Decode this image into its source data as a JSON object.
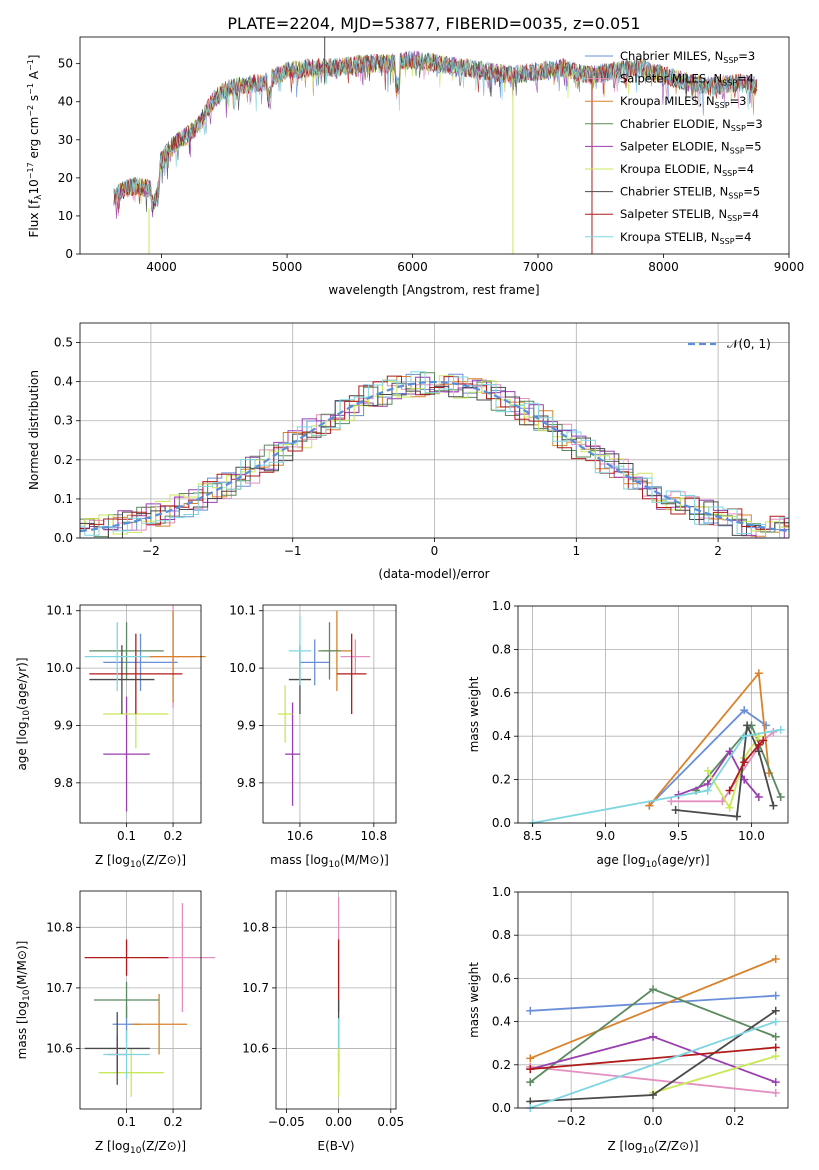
{
  "figure_title": "PLATE=2204, MJD=53877, FIBERID=0035, z=0.051",
  "colors": {
    "chabrier_miles": "#6a8fd8",
    "salpeter_miles": "#e38fc0",
    "kroupa_miles": "#d9822b",
    "chabrier_elodie": "#5b8a5e",
    "salpeter_elodie": "#9a3fb0",
    "kroupa_elodie": "#c8e85a",
    "chabrier_stelib": "#4a4a4a",
    "salpeter_stelib": "#b01c1c",
    "kroupa_stelib": "#7fd6e0",
    "gaussian": "#5b8ed8",
    "grid": "#b0b0b0"
  },
  "chart_data": [
    {
      "id": "spectrum",
      "type": "line",
      "xlabel": "wavelength [Angstrom, rest frame]",
      "ylabel_main": "Flux [f",
      "ylabel_sub": "λ",
      "ylabel_rest": "10",
      "ylabel_exp": "−17",
      "ylabel_units": "erg cm",
      "ylabel_units_exp": "−2",
      "ylabel_units2": "s",
      "ylabel_units2_exp": "−1",
      "ylabel_units3": "A",
      "ylabel_units3_exp": "−1",
      "ylabel_close": "]",
      "xlim": [
        3350,
        9000
      ],
      "ylim": [
        0,
        57
      ],
      "xticks": [
        "4000",
        "5000",
        "6000",
        "7000",
        "8000",
        "9000"
      ],
      "yticks": [
        "0",
        "10",
        "20",
        "30",
        "40",
        "50"
      ],
      "grid": false,
      "legend_position": "top-right",
      "legend": [
        {
          "label": "Chabrier MILES, N",
          "sub": "SSP",
          "value": "=3"
        },
        {
          "label": "Salpeter MILES, N",
          "sub": "SSP",
          "value": "=4"
        },
        {
          "label": "Kroupa MILES, N",
          "sub": "SSP",
          "value": "=3"
        },
        {
          "label": "Chabrier ELODIE, N",
          "sub": "SSP",
          "value": "=3"
        },
        {
          "label": "Salpeter ELODIE, N",
          "sub": "SSP",
          "value": "=5"
        },
        {
          "label": "Kroupa ELODIE, N",
          "sub": "SSP",
          "value": "=4"
        },
        {
          "label": "Chabrier STELIB, N",
          "sub": "SSP",
          "value": "=5"
        },
        {
          "label": "Salpeter STELIB, N",
          "sub": "SSP",
          "value": "=4"
        },
        {
          "label": "Kroupa STELIB, N",
          "sub": "SSP",
          "value": "=4"
        }
      ],
      "spectrum_envelope": {
        "x": [
          3620,
          3700,
          3800,
          3900,
          3950,
          4000,
          4100,
          4200,
          4300,
          4400,
          4500,
          4600,
          4800,
          5000,
          5200,
          5400,
          5600,
          5800,
          6000,
          6200,
          6400,
          6600,
          6800,
          7000,
          7200,
          7400,
          7600,
          7800,
          8000,
          8200,
          8400,
          8600,
          8750
        ],
        "y": [
          15,
          17,
          18,
          17,
          19,
          25,
          29,
          31,
          34,
          40,
          43,
          44,
          45,
          48,
          49,
          49,
          50,
          50,
          51,
          50,
          49,
          48,
          47,
          48,
          49,
          47,
          48,
          49,
          47,
          45,
          44,
          45,
          44
        ]
      },
      "spikes": [
        {
          "x": 5300,
          "y_top": 57,
          "y_bottom": 45
        },
        {
          "x": 6800,
          "y_top": 46,
          "y_bottom": 0
        },
        {
          "x": 7430,
          "y_top": 46,
          "y_bottom": 0
        },
        {
          "x": 3900,
          "y_top": 12,
          "y_bottom": 0
        }
      ]
    },
    {
      "id": "residuals",
      "type": "histogram",
      "xlabel": "(data-model)/error",
      "ylabel": "Normed distribution",
      "xlim": [
        -2.5,
        2.5
      ],
      "ylim": [
        0,
        0.55
      ],
      "xticks": [
        "−2",
        "−1",
        "0",
        "1",
        "2"
      ],
      "yticks": [
        "0.0",
        "0.1",
        "0.2",
        "0.3",
        "0.4",
        "0.5"
      ],
      "grid": true,
      "legend_position": "top-right",
      "legend_label": "𝒩(0, 1)",
      "gaussian": {
        "mean": 0,
        "sigma": 1
      }
    },
    {
      "id": "age_vs_Z",
      "type": "errorbar",
      "xlabel": "Z [log10(Z/Z⊙)]",
      "ylabel": "age  [log10(age/yr)]",
      "xlim": [
        0.0,
        0.26
      ],
      "ylim": [
        9.73,
        10.11
      ],
      "xticks": [
        "0.1",
        "0.2"
      ],
      "yticks": [
        "9.8",
        "9.9",
        "10.0",
        "10.1"
      ],
      "grid": true,
      "points": [
        {
          "series": "chabrier_miles",
          "x": 0.13,
          "xerr": 0.08,
          "y": 10.01,
          "yerr": 0.05
        },
        {
          "series": "salpeter_miles",
          "x": 0.2,
          "xerr": 0.05,
          "y": 10.02,
          "yerr": 0.09
        },
        {
          "series": "kroupa_miles",
          "x": 0.2,
          "xerr": 0.07,
          "y": 10.02,
          "yerr": 0.08
        },
        {
          "series": "chabrier_elodie",
          "x": 0.1,
          "xerr": 0.08,
          "y": 10.03,
          "yerr": 0.05
        },
        {
          "series": "salpeter_elodie",
          "x": 0.1,
          "xerr": 0.05,
          "y": 9.85,
          "yerr": 0.1
        },
        {
          "series": "kroupa_elodie",
          "x": 0.12,
          "xerr": 0.07,
          "y": 9.92,
          "yerr": 0.06
        },
        {
          "series": "chabrier_stelib",
          "x": 0.09,
          "xerr": 0.07,
          "y": 9.98,
          "yerr": 0.06
        },
        {
          "series": "salpeter_stelib",
          "x": 0.12,
          "xerr": 0.1,
          "y": 9.99,
          "yerr": 0.07
        },
        {
          "series": "kroupa_stelib",
          "x": 0.08,
          "xerr": 0.07,
          "y": 10.02,
          "yerr": 0.06
        }
      ]
    },
    {
      "id": "age_vs_mass",
      "type": "errorbar",
      "xlabel": "mass [log10(M/M⊙)]",
      "xlim": [
        10.5,
        10.86
      ],
      "ylim": [
        9.73,
        10.11
      ],
      "xticks": [
        "10.6",
        "10.8"
      ],
      "yticks": [
        "9.8",
        "9.9",
        "10.0",
        "10.1"
      ],
      "grid": true,
      "points": [
        {
          "series": "chabrier_miles",
          "x": 10.64,
          "xerr": 0.04,
          "y": 10.01,
          "yerr": 0.04
        },
        {
          "series": "salpeter_miles",
          "x": 10.75,
          "xerr": 0.04,
          "y": 10.02,
          "yerr": 0.03
        },
        {
          "series": "kroupa_miles",
          "x": 10.7,
          "xerr": 0.04,
          "y": 10.03,
          "yerr": 0.07
        },
        {
          "series": "chabrier_elodie",
          "x": 10.68,
          "xerr": 0.03,
          "y": 10.03,
          "yerr": 0.05
        },
        {
          "series": "salpeter_elodie",
          "x": 10.58,
          "xerr": 0.02,
          "y": 9.85,
          "yerr": 0.09
        },
        {
          "series": "kroupa_elodie",
          "x": 10.56,
          "xerr": 0.02,
          "y": 9.92,
          "yerr": 0.05
        },
        {
          "series": "chabrier_stelib",
          "x": 10.6,
          "xerr": 0.03,
          "y": 9.98,
          "yerr": 0.06
        },
        {
          "series": "salpeter_stelib",
          "x": 10.74,
          "xerr": 0.04,
          "y": 9.99,
          "yerr": 0.07
        },
        {
          "series": "kroupa_stelib",
          "x": 10.6,
          "xerr": 0.03,
          "y": 10.03,
          "yerr": 0.06
        }
      ]
    },
    {
      "id": "mass_weight_vs_age",
      "type": "line",
      "xlabel": "age  [log10(age/yr)]",
      "ylabel": "mass weight",
      "xlim": [
        8.4,
        10.25
      ],
      "ylim": [
        0,
        1.0
      ],
      "xticks": [
        "8.5",
        "9.0",
        "9.5",
        "10.0"
      ],
      "yticks": [
        "0.0",
        "0.2",
        "0.4",
        "0.6",
        "0.8",
        "1.0"
      ],
      "grid": true,
      "series": [
        {
          "name": "chabrier_miles",
          "x": [
            9.3,
            9.95,
            10.1
          ],
          "y": [
            0.08,
            0.52,
            0.45
          ]
        },
        {
          "name": "salpeter_miles",
          "x": [
            9.45,
            9.8,
            10.08,
            10.15
          ],
          "y": [
            0.1,
            0.1,
            0.38,
            0.42
          ]
        },
        {
          "name": "kroupa_miles",
          "x": [
            9.3,
            10.05,
            10.12
          ],
          "y": [
            0.08,
            0.69,
            0.23
          ]
        },
        {
          "name": "chabrier_elodie",
          "x": [
            9.62,
            10.0,
            10.2
          ],
          "y": [
            0.15,
            0.45,
            0.12
          ]
        },
        {
          "name": "salpeter_elodie",
          "x": [
            9.5,
            9.7,
            9.85,
            9.95,
            10.05
          ],
          "y": [
            0.13,
            0.18,
            0.33,
            0.2,
            0.12
          ]
        },
        {
          "name": "kroupa_elodie",
          "x": [
            9.7,
            9.85,
            9.95,
            10.05
          ],
          "y": [
            0.24,
            0.07,
            0.3,
            0.4
          ]
        },
        {
          "name": "chabrier_stelib",
          "x": [
            9.48,
            9.9,
            9.97,
            10.05,
            10.15
          ],
          "y": [
            0.06,
            0.03,
            0.45,
            0.33,
            0.08
          ]
        },
        {
          "name": "salpeter_stelib",
          "x": [
            9.85,
            9.95,
            10.05,
            10.08
          ],
          "y": [
            0.15,
            0.28,
            0.36,
            0.38
          ]
        },
        {
          "name": "kroupa_stelib",
          "x": [
            8.5,
            9.7,
            9.95,
            10.2
          ],
          "y": [
            0.0,
            0.15,
            0.4,
            0.43
          ]
        }
      ]
    },
    {
      "id": "mass_vs_Z",
      "type": "errorbar",
      "xlabel": "Z [log10(Z/Z⊙)]",
      "ylabel": "mass [log10(M/M⊙)]",
      "xlim": [
        0.0,
        0.26
      ],
      "ylim": [
        10.5,
        10.86
      ],
      "xticks": [
        "0.1",
        "0.2"
      ],
      "yticks": [
        "10.6",
        "10.7",
        "10.8"
      ],
      "grid": true,
      "points": [
        {
          "series": "chabrier_miles",
          "x": 0.1,
          "xerr": 0.03,
          "y": 10.64,
          "yerr": 0.03
        },
        {
          "series": "salpeter_miles",
          "x": 0.22,
          "xerr": 0.07,
          "y": 10.75,
          "yerr": 0.09
        },
        {
          "series": "kroupa_miles",
          "x": 0.17,
          "xerr": 0.06,
          "y": 10.64,
          "yerr": 0.05
        },
        {
          "series": "chabrier_elodie",
          "x": 0.1,
          "xerr": 0.07,
          "y": 10.68,
          "yerr": 0.03
        },
        {
          "series": "salpeter_elodie",
          "x": 0.08,
          "xerr": 0.02,
          "y": 10.59,
          "yerr": 0.03
        },
        {
          "series": "kroupa_elodie",
          "x": 0.11,
          "xerr": 0.07,
          "y": 10.56,
          "yerr": 0.04
        },
        {
          "series": "chabrier_stelib",
          "x": 0.08,
          "xerr": 0.07,
          "y": 10.6,
          "yerr": 0.06
        },
        {
          "series": "salpeter_stelib",
          "x": 0.1,
          "xerr": 0.09,
          "y": 10.75,
          "yerr": 0.03
        },
        {
          "series": "kroupa_stelib",
          "x": 0.1,
          "xerr": 0.05,
          "y": 10.59,
          "yerr": 0.04
        }
      ]
    },
    {
      "id": "mass_vs_ebv",
      "type": "errorbar",
      "xlabel": "E(B-V)",
      "xlim": [
        -0.06,
        0.055
      ],
      "ylim": [
        10.5,
        10.86
      ],
      "xticks": [
        "−0.05",
        "0.00",
        "0.05"
      ],
      "yticks": [
        "10.6",
        "10.7",
        "10.8"
      ],
      "grid": true,
      "points": [
        {
          "series": "salpeter_miles",
          "x": 0.0,
          "xerr": 0.0,
          "y": 10.77,
          "yerr": 0.08
        },
        {
          "series": "salpeter_stelib",
          "x": 0.0,
          "xerr": 0.0,
          "y": 10.72,
          "yerr": 0.06
        },
        {
          "series": "chabrier_stelib",
          "x": 0.0,
          "xerr": 0.0,
          "y": 10.62,
          "yerr": 0.06
        },
        {
          "series": "kroupa_stelib",
          "x": 0.0,
          "xerr": 0.0,
          "y": 10.6,
          "yerr": 0.05
        },
        {
          "series": "kroupa_elodie",
          "x": 0.0,
          "xerr": 0.0,
          "y": 10.56,
          "yerr": 0.04
        }
      ]
    },
    {
      "id": "mass_weight_vs_Z",
      "type": "line",
      "xlabel": "Z [log10(Z/Z⊙)]",
      "ylabel": "mass weight",
      "xlim": [
        -0.33,
        0.33
      ],
      "ylim": [
        0,
        1.0
      ],
      "xticks": [
        "−0.2",
        "0.0",
        "0.2"
      ],
      "yticks": [
        "0.0",
        "0.2",
        "0.4",
        "0.6",
        "0.8",
        "1.0"
      ],
      "grid": true,
      "series": [
        {
          "name": "chabrier_miles",
          "x": [
            -0.3,
            0.3
          ],
          "y": [
            0.45,
            0.52
          ]
        },
        {
          "name": "salpeter_miles",
          "x": [
            -0.3,
            0.3
          ],
          "y": [
            0.19,
            0.07
          ]
        },
        {
          "name": "kroupa_miles",
          "x": [
            -0.3,
            0.3
          ],
          "y": [
            0.23,
            0.69
          ]
        },
        {
          "name": "chabrier_elodie",
          "x": [
            -0.3,
            0.0,
            0.3
          ],
          "y": [
            0.12,
            0.55,
            0.33
          ]
        },
        {
          "name": "salpeter_elodie",
          "x": [
            -0.3,
            0.0,
            0.3
          ],
          "y": [
            0.18,
            0.33,
            0.12
          ]
        },
        {
          "name": "kroupa_elodie",
          "x": [
            0.0,
            0.3
          ],
          "y": [
            0.07,
            0.24
          ]
        },
        {
          "name": "chabrier_stelib",
          "x": [
            -0.3,
            0.0,
            0.3
          ],
          "y": [
            0.03,
            0.06,
            0.45
          ]
        },
        {
          "name": "salpeter_stelib",
          "x": [
            -0.3,
            0.3
          ],
          "y": [
            0.18,
            0.28
          ]
        },
        {
          "name": "kroupa_stelib",
          "x": [
            -0.3,
            0.3
          ],
          "y": [
            0.0,
            0.4
          ]
        }
      ]
    }
  ]
}
